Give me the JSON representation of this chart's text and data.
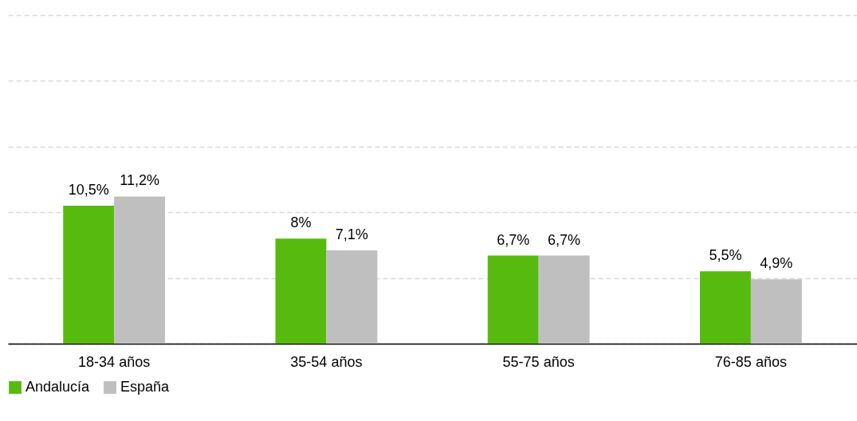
{
  "chart_data": {
    "type": "bar",
    "categories": [
      "18-34 años",
      "35-54 años",
      "55-75 años",
      "76-85 años"
    ],
    "series": [
      {
        "name": "Andalucía",
        "color": "#56bb0e",
        "values": [
          10.5,
          8,
          6.7,
          5.5
        ],
        "value_labels": [
          "10,5%",
          "8%",
          "6,7%",
          "5,5%"
        ]
      },
      {
        "name": "España",
        "color": "#bfbfbf",
        "values": [
          11.2,
          7.1,
          6.7,
          4.9
        ],
        "value_labels": [
          "11,2%",
          "7,1%",
          "6,7%",
          "4,9%"
        ]
      }
    ],
    "ylim": [
      0,
      25
    ],
    "yticks": [
      {
        "value": 0,
        "label": null
      },
      {
        "value": 5,
        "label": null
      },
      {
        "value": 10,
        "label": null
      },
      {
        "value": 15,
        "label": null
      },
      {
        "value": 20,
        "label": null
      },
      {
        "value": 25,
        "label": null
      }
    ],
    "tick_labels": "x",
    "grid": "y",
    "legend": "bottom"
  }
}
